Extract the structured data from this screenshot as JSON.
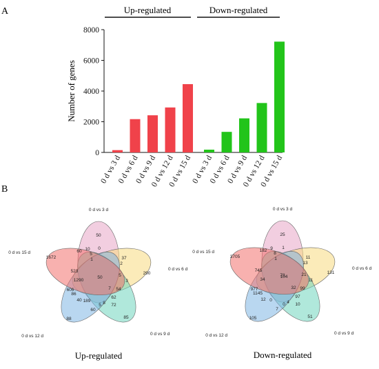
{
  "panel_a_label": "A",
  "panel_b_label": "B",
  "chart_data": [
    {
      "type": "bar",
      "groups": [
        "Up-regulated",
        "Down-regulated"
      ],
      "categories": [
        "0 d vs 3 d",
        "0 d vs 6 d",
        "0 d vs 9 d",
        "0 d vs 12 d",
        "0 d vs 15 d"
      ],
      "series": [
        {
          "name": "Up-regulated",
          "color": "#f0424a",
          "values": [
            150,
            2170,
            2420,
            2930,
            4450
          ]
        },
        {
          "name": "Down-regulated",
          "color": "#22c41a",
          "values": [
            180,
            1340,
            2220,
            3220,
            7220
          ]
        }
      ],
      "xlabel": "",
      "ylabel": "Number of genes",
      "ylim": [
        0,
        8000
      ],
      "yticks": [
        0,
        2000,
        4000,
        6000,
        8000
      ],
      "grid": false
    },
    {
      "type": "venn",
      "title": "Up-regulated",
      "sets": [
        {
          "name": "0 d vs 3 d",
          "color": "#e8a6c6"
        },
        {
          "name": "0 d vs 6 d",
          "color": "#f7db80"
        },
        {
          "name": "0 d vs 9 d",
          "color": "#6fd6be"
        },
        {
          "name": "0 d vs 12 d",
          "color": "#7fb6e3"
        },
        {
          "name": "0 d vs 15 d",
          "color": "#f3716d"
        }
      ],
      "counts": [
        "50",
        "290",
        "85",
        "88",
        "1672",
        "0",
        "2",
        "37",
        "10",
        "60",
        "1",
        "5",
        "3",
        "5",
        "54",
        "7",
        "62",
        "72",
        "8",
        "5",
        "189",
        "40",
        "60",
        "1290",
        "523",
        "606",
        "86",
        "50"
      ]
    },
    {
      "type": "venn",
      "title": "Down-regulated",
      "sets": [
        {
          "name": "0 d vs 3 d",
          "color": "#e8a6c6"
        },
        {
          "name": "0 d vs 6 d",
          "color": "#f7db80"
        },
        {
          "name": "0 d vs 9 d",
          "color": "#6fd6be"
        },
        {
          "name": "0 d vs 12 d",
          "color": "#7fb6e3"
        },
        {
          "name": "0 d vs 15 d",
          "color": "#f3716d"
        }
      ],
      "counts": [
        "25",
        "131",
        "51",
        "105",
        "3705",
        "1",
        "13",
        "11",
        "9",
        "182",
        "1",
        "8",
        "11",
        "21",
        "99",
        "32",
        "97",
        "10",
        "4",
        "0",
        "0",
        "12",
        "7",
        "34",
        "745",
        "977",
        "1145",
        "104",
        "78"
      ]
    }
  ]
}
